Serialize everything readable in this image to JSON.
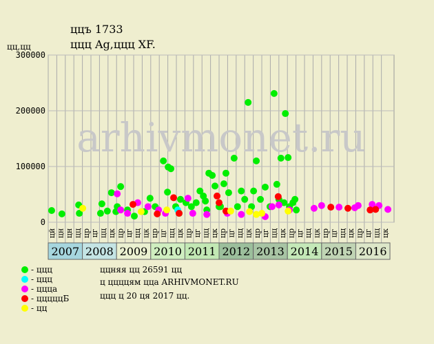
{
  "chart_data": {
    "type": "scatter",
    "title": "ццъ 1733",
    "subtitle": "ццц Ag,ццц XF.",
    "y_label": "цц,цц",
    "watermark": "arhivmonet.ru",
    "xlim": [
      2007,
      2017.12
    ],
    "ylim": [
      0,
      300000
    ],
    "yticks": [
      0,
      100000,
      200000,
      300000
    ],
    "grid": true,
    "xticks": [
      {
        "value": 2007,
        "label": "цй"
      },
      {
        "value": 2007.25,
        "label": "цн"
      },
      {
        "value": 2007.5,
        "label": "цн"
      },
      {
        "value": 2007.75,
        "label": "цц"
      },
      {
        "value": 2008,
        "label": "цр"
      },
      {
        "value": 2008.25,
        "label": "цг"
      },
      {
        "value": 2008.5,
        "label": "цц"
      },
      {
        "value": 2008.75,
        "label": "цк"
      },
      {
        "value": 2009,
        "label": "цр"
      },
      {
        "value": 2009.25,
        "label": "цг"
      },
      {
        "value": 2009.5,
        "label": "цц"
      },
      {
        "value": 2009.75,
        "label": "цк"
      },
      {
        "value": 2010,
        "label": "цр"
      },
      {
        "value": 2010.25,
        "label": "цг"
      },
      {
        "value": 2010.5,
        "label": "цц"
      },
      {
        "value": 2010.75,
        "label": "цк"
      },
      {
        "value": 2011,
        "label": "цр"
      },
      {
        "value": 2011.25,
        "label": "цг"
      },
      {
        "value": 2011.5,
        "label": "цц"
      },
      {
        "value": 2011.75,
        "label": "цк"
      },
      {
        "value": 2012,
        "label": "цр"
      },
      {
        "value": 2012.25,
        "label": "цг"
      },
      {
        "value": 2012.5,
        "label": "цц"
      },
      {
        "value": 2012.75,
        "label": "цк"
      },
      {
        "value": 2013,
        "label": "цр"
      },
      {
        "value": 2013.25,
        "label": "цг"
      },
      {
        "value": 2013.5,
        "label": "цц"
      },
      {
        "value": 2013.75,
        "label": "цк"
      },
      {
        "value": 2014,
        "label": "цр"
      },
      {
        "value": 2014.25,
        "label": "цг"
      },
      {
        "value": 2014.5,
        "label": "цц"
      },
      {
        "value": 2014.75,
        "label": "цк"
      },
      {
        "value": 2015,
        "label": "цр"
      },
      {
        "value": 2015.25,
        "label": "цг"
      },
      {
        "value": 2015.5,
        "label": "цц"
      },
      {
        "value": 2015.75,
        "label": "цк"
      },
      {
        "value": 2016,
        "label": "цр"
      },
      {
        "value": 2016.25,
        "label": "цг"
      },
      {
        "value": 2016.5,
        "label": "цц"
      },
      {
        "value": 2016.75,
        "label": "цк"
      }
    ],
    "year_groups": [
      {
        "label": "2007",
        "color": "#a6d6de"
      },
      {
        "label": "2008",
        "color": "#c4e4e4"
      },
      {
        "label": "2009",
        "color": "#eaf0d0"
      },
      {
        "label": "2010",
        "color": "#cfeec0"
      },
      {
        "label": "2011",
        "color": "#c2e8b4"
      },
      {
        "label": "2012",
        "color": "#9cbf9c"
      },
      {
        "label": "2013",
        "color": "#a8c4a4"
      },
      {
        "label": "2014",
        "color": "#c4e8b8"
      },
      {
        "label": "2015",
        "color": "#c0d4b4"
      },
      {
        "label": "2016",
        "color": "#dce6c8"
      }
    ],
    "series": [
      {
        "name": "- ццц",
        "color": "#00ee00",
        "x": [
          2007.1,
          2007.4,
          2007.89,
          2007.91,
          2008.53,
          2008.57,
          2008.73,
          2008.85,
          2009.02,
          2009.12,
          2008.98,
          2009.32,
          2009.52,
          2009.82,
          2009.98,
          2010.13,
          2010.37,
          2010.49,
          2010.51,
          2010.59,
          2010.73,
          2010.87,
          2011.03,
          2011.19,
          2011.33,
          2011.44,
          2011.54,
          2011.6,
          2011.7,
          2011.8,
          2011.88,
          2012.0,
          2012.14,
          2012.2,
          2012.28,
          2012.44,
          2012.54,
          2012.65,
          2012.75,
          2012.85,
          2012.95,
          2013.01,
          2013.09,
          2013.21,
          2013.35,
          2013.49,
          2013.61,
          2013.69,
          2013.75,
          2013.81,
          2013.9,
          2013.94,
          2014.02,
          2014.06,
          2014.16,
          2014.22,
          2014.26,
          2012.04,
          2011.64,
          2010.83
        ],
        "values": [
          21000,
          15000,
          31000,
          16000,
          16000,
          33000,
          20000,
          53000,
          28000,
          64000,
          19000,
          22000,
          11000,
          19000,
          43000,
          28000,
          110000,
          54000,
          99000,
          96000,
          28000,
          41000,
          35000,
          28000,
          35000,
          56000,
          47000,
          38000,
          88000,
          84000,
          65000,
          28000,
          69000,
          88000,
          53000,
          115000,
          28000,
          56000,
          41000,
          215000,
          28000,
          56000,
          110000,
          41000,
          63000,
          28000,
          231000,
          68000,
          41000,
          115000,
          35000,
          195000,
          116000,
          28000,
          35000,
          41000,
          22000,
          28000,
          22000,
          16000
        ]
      },
      {
        "name": "- ццц",
        "color": "#00ffff",
        "x": [
          2010.79
        ],
        "values": [
          22000
        ]
      },
      {
        "name": "- ццца",
        "color": "#ff00ff",
        "x": [
          2009.02,
          2009.12,
          2009.32,
          2009.62,
          2009.92,
          2010.23,
          2010.43,
          2011.09,
          2011.23,
          2011.64,
          2012.24,
          2012.65,
          2013.35,
          2013.55,
          2013.75,
          2014.06,
          2014.78,
          2015.0,
          2015.51,
          2015.97,
          2016.07,
          2016.48,
          2016.68,
          2016.94
        ],
        "values": [
          51000,
          22000,
          16000,
          35000,
          28000,
          22000,
          16000,
          43000,
          16000,
          14000,
          16000,
          14000,
          10000,
          28000,
          31000,
          22000,
          25000,
          30000,
          27000,
          26000,
          30000,
          32000,
          30000,
          23000
        ]
      },
      {
        "name": "- цццццБ",
        "color": "#ff0000",
        "x": [
          2009.48,
          2010.19,
          2010.67,
          2010.83,
          2011.94,
          2012.0,
          2012.2,
          2013.73,
          2015.27,
          2015.77,
          2016.42,
          2016.58
        ],
        "values": [
          32000,
          15000,
          44000,
          16000,
          47000,
          35000,
          20000,
          46000,
          27000,
          25000,
          22000,
          23000
        ]
      },
      {
        "name": "- цц",
        "color": "#ffff00",
        "x": [
          2008.01,
          2009.72,
          2010.47,
          2012.34,
          2012.89,
          2013.09,
          2013.25,
          2014.02
        ],
        "values": [
          25000,
          19000,
          22000,
          20000,
          19000,
          14000,
          16000,
          20000
        ]
      }
    ]
  },
  "footer": [
    "ццняя цц 26591 цц",
    "ц ццццям цца ARHIVMONET.RU",
    "ццц ц 20 ця 2017 цц."
  ]
}
